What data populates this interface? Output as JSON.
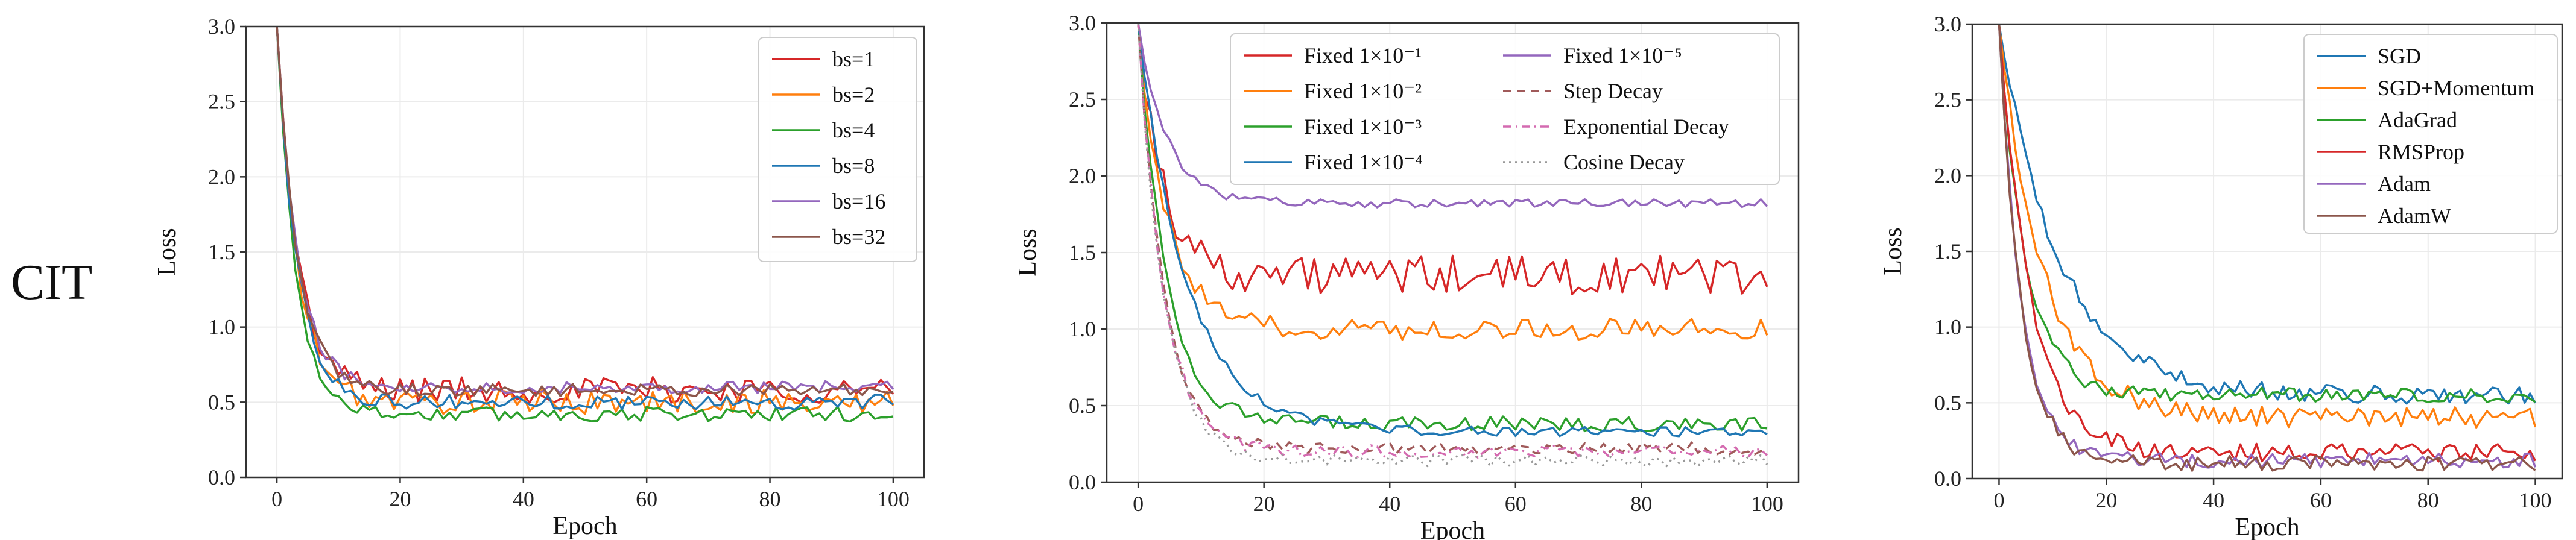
{
  "row_label": "CIT",
  "chart_data": [
    {
      "type": "line",
      "title": "",
      "xlabel": "Epoch",
      "ylabel": "Loss",
      "xlim": [
        -5,
        105
      ],
      "ylim": [
        0.0,
        3.0
      ],
      "xticks": [
        0,
        20,
        40,
        60,
        80,
        100
      ],
      "yticks": [
        0.0,
        0.5,
        1.0,
        1.5,
        2.0,
        2.5,
        3.0
      ],
      "xtick_labels": [
        "0",
        "20",
        "40",
        "60",
        "80",
        "100"
      ],
      "ytick_labels": [
        "0.0",
        "0.5",
        "1.0",
        "1.5",
        "2.0",
        "2.5",
        "3.0"
      ],
      "grid": true,
      "legend_position": "top-right",
      "series": [
        {
          "name": "bs=1",
          "color": "#d62728",
          "dash": "solid",
          "start": 3.0,
          "k": 0.3,
          "plateau": 0.58,
          "noise": 0.09
        },
        {
          "name": "bs=2",
          "color": "#ff7f0e",
          "dash": "solid",
          "start": 3.0,
          "k": 0.3,
          "plateau": 0.5,
          "noise": 0.08
        },
        {
          "name": "bs=4",
          "color": "#2ca02c",
          "dash": "solid",
          "start": 3.0,
          "k": 0.32,
          "plateau": 0.42,
          "noise": 0.05
        },
        {
          "name": "bs=8",
          "color": "#1f77b4",
          "dash": "solid",
          "start": 3.0,
          "k": 0.3,
          "plateau": 0.5,
          "noise": 0.05
        },
        {
          "name": "bs=16",
          "color": "#9467bd",
          "dash": "solid",
          "start": 3.0,
          "k": 0.3,
          "plateau": 0.6,
          "noise": 0.04
        },
        {
          "name": "bs=32",
          "color": "#8c564b",
          "dash": "solid",
          "start": 3.0,
          "k": 0.3,
          "plateau": 0.58,
          "noise": 0.04
        }
      ]
    },
    {
      "type": "line",
      "title": "",
      "xlabel": "Epoch",
      "ylabel": "Loss",
      "xlim": [
        -5,
        105
      ],
      "ylim": [
        0.0,
        3.0
      ],
      "xticks": [
        0,
        20,
        40,
        60,
        80,
        100
      ],
      "yticks": [
        0.0,
        0.5,
        1.0,
        1.5,
        2.0,
        2.5,
        3.0
      ],
      "xtick_labels": [
        "0",
        "20",
        "40",
        "60",
        "80",
        "100"
      ],
      "ytick_labels": [
        "0.0",
        "0.5",
        "1.0",
        "1.5",
        "2.0",
        "2.5",
        "3.0"
      ],
      "grid": true,
      "legend_position": "top-right",
      "series": [
        {
          "name": "Fixed 1×10⁻¹",
          "color": "#d62728",
          "dash": "solid",
          "start": 3.0,
          "k": 0.25,
          "plateau": 1.35,
          "noise": 0.13
        },
        {
          "name": "Fixed 1×10⁻²",
          "color": "#ff7f0e",
          "dash": "solid",
          "start": 3.0,
          "k": 0.22,
          "plateau": 1.0,
          "noise": 0.07
        },
        {
          "name": "Fixed 1×10⁻³",
          "color": "#2ca02c",
          "dash": "solid",
          "start": 3.0,
          "k": 0.22,
          "plateau": 0.38,
          "noise": 0.05
        },
        {
          "name": "Fixed 1×10⁻⁴",
          "color": "#1f77b4",
          "dash": "solid",
          "start": 3.0,
          "k": 0.13,
          "plateau": 0.33,
          "noise": 0.03
        },
        {
          "name": "Fixed 1×10⁻⁵",
          "color": "#9467bd",
          "dash": "solid",
          "start": 3.0,
          "k": 0.22,
          "plateau": 1.82,
          "noise": 0.03
        },
        {
          "name": "Step Decay",
          "color": "#a05a5a",
          "dash": "dashed",
          "start": 3.0,
          "k": 0.24,
          "plateau": 0.22,
          "noise": 0.04
        },
        {
          "name": "Exponential Decay",
          "color": "#d46ab0",
          "dash": "dashdot",
          "start": 3.0,
          "k": 0.24,
          "plateau": 0.2,
          "noise": 0.04
        },
        {
          "name": "Cosine Decay",
          "color": "#999999",
          "dash": "dotted",
          "start": 3.0,
          "k": 0.24,
          "plateau": 0.14,
          "noise": 0.04
        }
      ]
    },
    {
      "type": "line",
      "title": "",
      "xlabel": "Epoch",
      "ylabel": "Loss",
      "xlim": [
        -5,
        105
      ],
      "ylim": [
        0.0,
        3.0
      ],
      "xticks": [
        0,
        20,
        40,
        60,
        80,
        100
      ],
      "yticks": [
        0.0,
        0.5,
        1.0,
        1.5,
        2.0,
        2.5,
        3.0
      ],
      "xtick_labels": [
        "0",
        "20",
        "40",
        "60",
        "80",
        "100"
      ],
      "ytick_labels": [
        "0.0",
        "0.5",
        "1.0",
        "1.5",
        "2.0",
        "2.5",
        "3.0"
      ],
      "grid": true,
      "legend_position": "top-right",
      "series": [
        {
          "name": "SGD",
          "color": "#1f77b4",
          "dash": "solid",
          "start": 3.0,
          "k": 0.09,
          "plateau": 0.55,
          "noise": 0.06
        },
        {
          "name": "SGD+Momentum",
          "color": "#ff7f0e",
          "dash": "solid",
          "start": 3.0,
          "k": 0.12,
          "plateau": 0.4,
          "noise": 0.07
        },
        {
          "name": "AdaGrad",
          "color": "#2ca02c",
          "dash": "solid",
          "start": 3.0,
          "k": 0.2,
          "plateau": 0.55,
          "noise": 0.05
        },
        {
          "name": "RMSProp",
          "color": "#d62728",
          "dash": "solid",
          "start": 3.0,
          "k": 0.17,
          "plateau": 0.17,
          "noise": 0.06
        },
        {
          "name": "Adam",
          "color": "#9467bd",
          "dash": "solid",
          "start": 3.0,
          "k": 0.24,
          "plateau": 0.12,
          "noise": 0.05
        },
        {
          "name": "AdamW",
          "color": "#8c564b",
          "dash": "solid",
          "start": 3.0,
          "k": 0.24,
          "plateau": 0.1,
          "noise": 0.05
        }
      ]
    }
  ]
}
